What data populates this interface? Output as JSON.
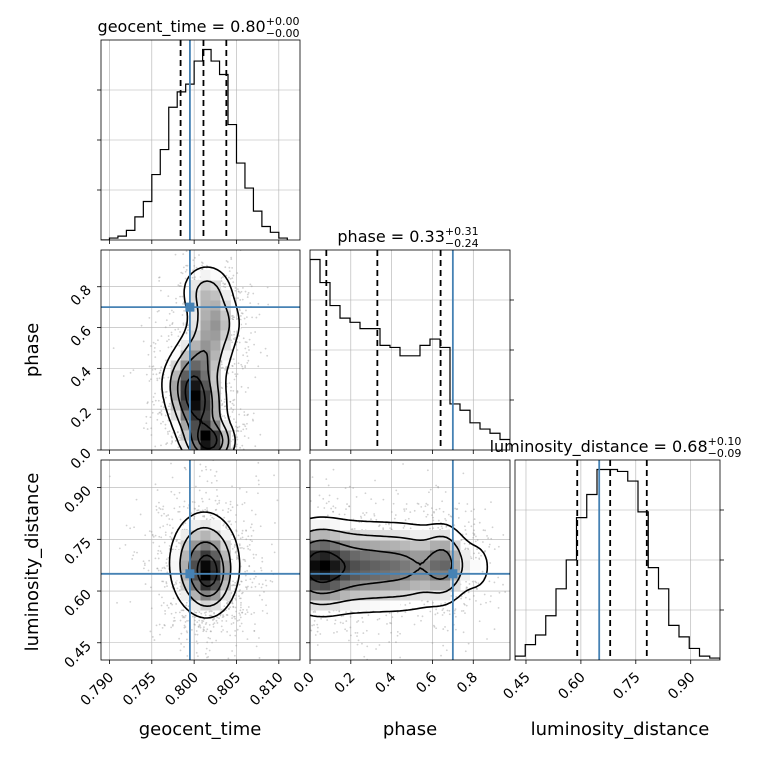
{
  "chart_data": {
    "type": "corner",
    "parameters": [
      "geocent_time",
      "phase",
      "luminosity_distance"
    ],
    "truth": {
      "geocent_time": 0.7995,
      "phase": 0.7,
      "luminosity_distance": 0.65
    },
    "diagonal": [
      {
        "param": "geocent_time",
        "title_main": "geocent_time = 0.80",
        "title_sup": "+0.00",
        "title_sub": "−0.00",
        "quantiles": [
          0.7984,
          0.8011,
          0.8038
        ],
        "xlim": [
          0.789,
          0.8125
        ],
        "bin_edges": [
          0.789,
          0.79,
          0.791,
          0.792,
          0.793,
          0.794,
          0.795,
          0.796,
          0.797,
          0.798,
          0.799,
          0.8,
          0.801,
          0.802,
          0.803,
          0.804,
          0.805,
          0.806,
          0.807,
          0.808,
          0.809,
          0.81,
          0.811
        ],
        "hist": [
          0.0,
          0.01,
          0.02,
          0.05,
          0.12,
          0.2,
          0.34,
          0.47,
          0.69,
          0.77,
          0.81,
          0.93,
          0.99,
          0.93,
          0.86,
          0.6,
          0.4,
          0.27,
          0.15,
          0.07,
          0.04,
          0.01
        ]
      },
      {
        "param": "phase",
        "title_main": "phase = 0.33",
        "title_sup": "+0.31",
        "title_sub": "−0.24",
        "quantiles": [
          0.08,
          0.33,
          0.64
        ],
        "xlim": [
          0.0,
          0.98
        ],
        "bin_edges": [
          0.0,
          0.049,
          0.098,
          0.147,
          0.196,
          0.245,
          0.294,
          0.343,
          0.392,
          0.441,
          0.49,
          0.539,
          0.588,
          0.637,
          0.686,
          0.735,
          0.784,
          0.833,
          0.882,
          0.931,
          0.98
        ],
        "hist": [
          0.91,
          0.8,
          0.69,
          0.63,
          0.61,
          0.58,
          0.58,
          0.5,
          0.49,
          0.45,
          0.45,
          0.5,
          0.53,
          0.49,
          0.22,
          0.19,
          0.13,
          0.1,
          0.08,
          0.05
        ]
      },
      {
        "param": "luminosity_distance",
        "title_main": "luminosity_distance = 0.68",
        "title_sup": "+0.10",
        "title_sub": "−0.09",
        "quantiles": [
          0.59,
          0.68,
          0.78
        ],
        "xlim": [
          0.42,
          0.98
        ],
        "bin_edges": [
          0.42,
          0.448,
          0.476,
          0.504,
          0.532,
          0.56,
          0.588,
          0.616,
          0.644,
          0.672,
          0.7,
          0.728,
          0.756,
          0.784,
          0.812,
          0.84,
          0.868,
          0.896,
          0.924,
          0.952,
          0.98
        ],
        "hist": [
          0.02,
          0.08,
          0.13,
          0.23,
          0.37,
          0.52,
          0.74,
          0.86,
          0.99,
          0.99,
          0.98,
          0.93,
          0.77,
          0.48,
          0.37,
          0.18,
          0.12,
          0.06,
          0.02,
          0.01
        ]
      }
    ],
    "pairs": [
      {
        "x": "geocent_time",
        "y": "phase",
        "xlim": [
          0.789,
          0.8125
        ],
        "ylim": [
          0.0,
          0.98
        ],
        "blobs": [
          {
            "cx": 0.8018,
            "cy": 0.04,
            "sx": 0.0015,
            "sy": 0.06,
            "w": 1.0
          },
          {
            "cx": 0.8005,
            "cy": 0.2,
            "sx": 0.0017,
            "sy": 0.1,
            "w": 0.85
          },
          {
            "cx": 0.7995,
            "cy": 0.33,
            "sx": 0.0018,
            "sy": 0.09,
            "w": 0.65
          },
          {
            "cx": 0.8012,
            "cy": 0.47,
            "sx": 0.0018,
            "sy": 0.08,
            "w": 0.45
          },
          {
            "cx": 0.8025,
            "cy": 0.62,
            "sx": 0.0017,
            "sy": 0.08,
            "w": 0.5
          },
          {
            "cx": 0.8015,
            "cy": 0.78,
            "sx": 0.0018,
            "sy": 0.08,
            "w": 0.4
          }
        ]
      },
      {
        "x": "geocent_time",
        "y": "luminosity_distance",
        "xlim": [
          0.789,
          0.8125
        ],
        "ylim": [
          0.4,
          0.98
        ],
        "blobs": [
          {
            "cx": 0.8012,
            "cy": 0.68,
            "sx": 0.0022,
            "sy": 0.08,
            "w": 1.0
          },
          {
            "cx": 0.8018,
            "cy": 0.64,
            "sx": 0.0013,
            "sy": 0.05,
            "w": 0.6
          }
        ]
      },
      {
        "x": "phase",
        "y": "luminosity_distance",
        "xlim": [
          0.0,
          0.98
        ],
        "ylim": [
          0.4,
          0.98
        ],
        "blobs": [
          {
            "cx": 0.03,
            "cy": 0.67,
            "sx": 0.1,
            "sy": 0.07,
            "w": 1.0
          },
          {
            "cx": 0.25,
            "cy": 0.67,
            "sx": 0.14,
            "sy": 0.07,
            "w": 0.75
          },
          {
            "cx": 0.5,
            "cy": 0.67,
            "sx": 0.12,
            "sy": 0.07,
            "w": 0.55
          },
          {
            "cx": 0.66,
            "cy": 0.68,
            "sx": 0.06,
            "sy": 0.06,
            "w": 0.6
          },
          {
            "cx": 0.82,
            "cy": 0.67,
            "sx": 0.06,
            "sy": 0.06,
            "w": 0.2
          }
        ]
      }
    ],
    "axes": {
      "geocent_time": {
        "ticks": [
          0.79,
          0.795,
          0.8,
          0.805,
          0.81
        ],
        "tick_labels": [
          "0.790",
          "0.795",
          "0.800",
          "0.805",
          "0.810"
        ],
        "label": "geocent_time"
      },
      "phase_y": {
        "ticks": [
          0.0,
          0.2,
          0.4,
          0.6,
          0.8
        ],
        "tick_labels": [
          "0.0",
          "0.2",
          "0.4",
          "0.6",
          "0.8"
        ],
        "label": "phase"
      },
      "phase_x": {
        "ticks": [
          0.0,
          0.2,
          0.4,
          0.6,
          0.8
        ],
        "tick_labels": [
          "0.0",
          "0.2",
          "0.4",
          "0.6",
          "0.8"
        ],
        "label": "phase"
      },
      "luminosity_distance_y": {
        "ticks": [
          0.45,
          0.6,
          0.75,
          0.9
        ],
        "tick_labels": [
          "0.45",
          "0.60",
          "0.75",
          "0.90"
        ],
        "label": "luminosity_distance"
      },
      "luminosity_distance_x": {
        "ticks": [
          0.45,
          0.6,
          0.75,
          0.9
        ],
        "tick_labels": [
          "0.45",
          "0.60",
          "0.75",
          "0.90"
        ],
        "label": "luminosity_distance"
      }
    },
    "grid": true,
    "colors": {
      "truth": "#4682b4",
      "hist": "#000000",
      "contour": "#000000",
      "grid": "#b0b0b0"
    }
  }
}
